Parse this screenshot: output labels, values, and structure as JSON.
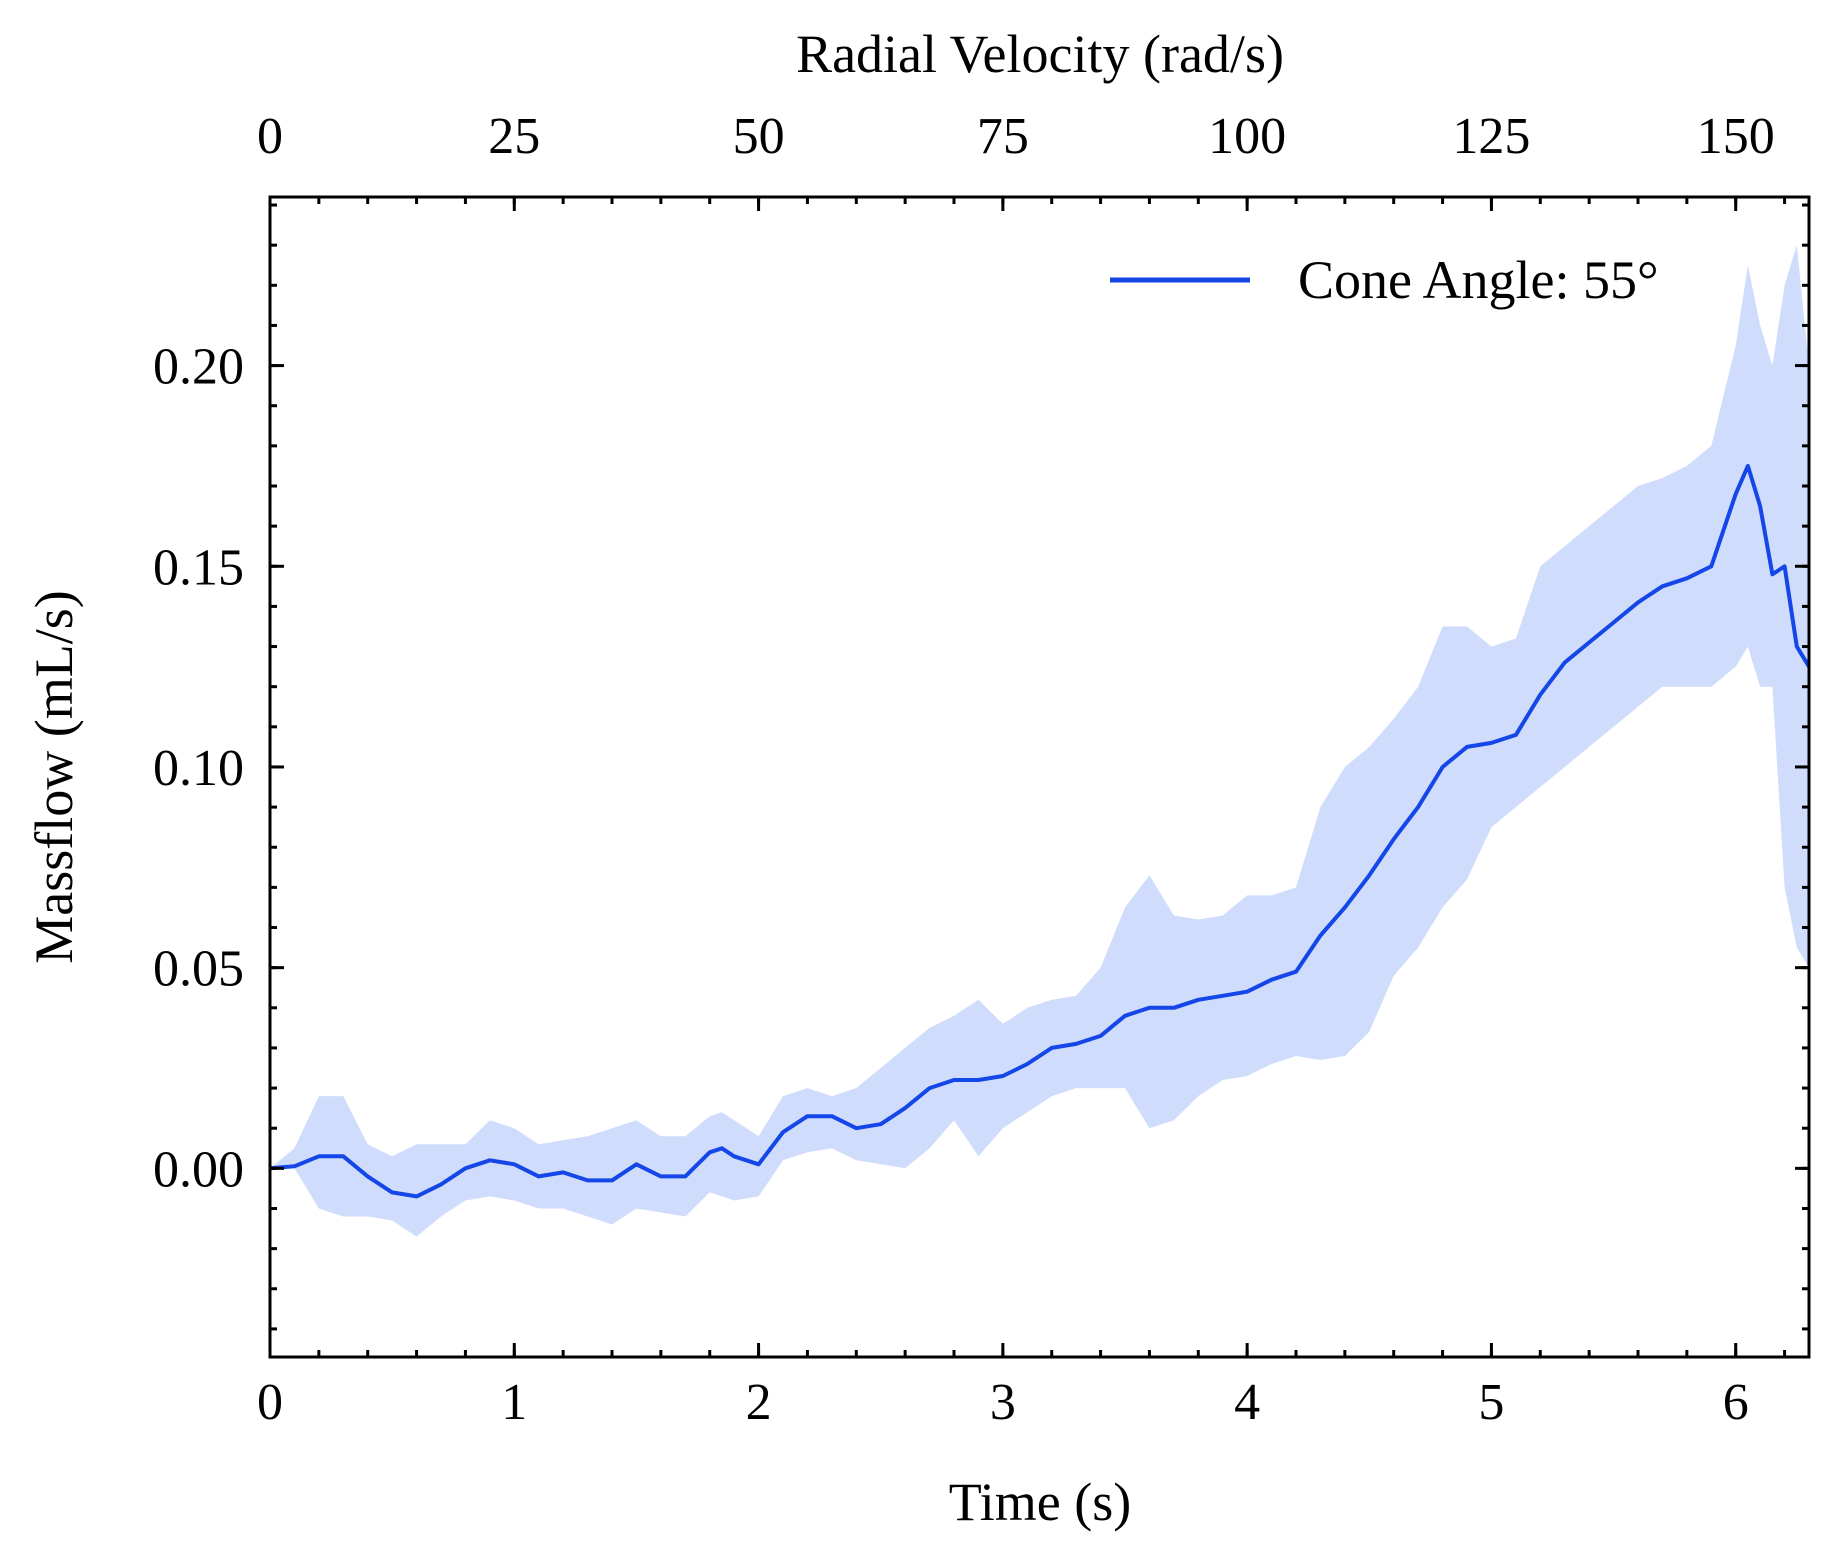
{
  "chart_data": {
    "type": "line",
    "xlabel": "Time (s)",
    "ylabel": "Massflow (mL/s)",
    "top_xlabel": "Radial Velocity (rad/s)",
    "xlim": [
      0,
      6.3
    ],
    "ylim": [
      -0.047,
      0.242
    ],
    "top_xlim": [
      0,
      157.5
    ],
    "x_ticks": [
      0,
      1,
      2,
      3,
      4,
      5,
      6
    ],
    "x_tick_labels": [
      "0",
      "1",
      "2",
      "3",
      "4",
      "5",
      "6"
    ],
    "x_minor_step": 0.2,
    "y_ticks": [
      0.0,
      0.05,
      0.1,
      0.15,
      0.2
    ],
    "y_tick_labels": [
      "0.00",
      "0.05",
      "0.10",
      "0.15",
      "0.20"
    ],
    "y_minor_step": 0.01,
    "top_ticks": [
      0,
      25,
      50,
      75,
      100,
      125,
      150
    ],
    "top_tick_labels": [
      "0",
      "25",
      "50",
      "75",
      "100",
      "125",
      "150"
    ],
    "top_minor_step": 5,
    "grid": false,
    "legend": {
      "position": "top-right"
    },
    "colors": {
      "line": "#1446e8",
      "band": "#cfdcfc"
    },
    "series": [
      {
        "name": "Cone Angle: 55°",
        "x": [
          0,
          0.1,
          0.2,
          0.3,
          0.4,
          0.5,
          0.6,
          0.7,
          0.8,
          0.9,
          1.0,
          1.1,
          1.2,
          1.3,
          1.4,
          1.5,
          1.6,
          1.7,
          1.8,
          1.85,
          1.9,
          2.0,
          2.1,
          2.2,
          2.3,
          2.4,
          2.5,
          2.6,
          2.7,
          2.8,
          2.9,
          3.0,
          3.1,
          3.2,
          3.3,
          3.4,
          3.5,
          3.6,
          3.7,
          3.8,
          3.9,
          4.0,
          4.1,
          4.2,
          4.3,
          4.4,
          4.5,
          4.6,
          4.7,
          4.8,
          4.9,
          5.0,
          5.1,
          5.2,
          5.3,
          5.4,
          5.5,
          5.6,
          5.7,
          5.8,
          5.9,
          6.0,
          6.05,
          6.1,
          6.15,
          6.2,
          6.25,
          6.3
        ],
        "y": [
          0.0,
          0.0005,
          0.003,
          0.003,
          -0.002,
          -0.006,
          -0.007,
          -0.004,
          0.0,
          0.002,
          0.001,
          -0.002,
          -0.001,
          -0.003,
          -0.003,
          0.001,
          -0.002,
          -0.002,
          0.004,
          0.005,
          0.003,
          0.001,
          0.009,
          0.013,
          0.013,
          0.01,
          0.011,
          0.015,
          0.02,
          0.022,
          0.022,
          0.023,
          0.026,
          0.03,
          0.031,
          0.033,
          0.038,
          0.04,
          0.04,
          0.042,
          0.043,
          0.044,
          0.047,
          0.049,
          0.058,
          0.065,
          0.073,
          0.082,
          0.09,
          0.1,
          0.105,
          0.106,
          0.108,
          0.118,
          0.126,
          0.131,
          0.136,
          0.141,
          0.145,
          0.147,
          0.15,
          0.168,
          0.175,
          0.165,
          0.148,
          0.15,
          0.13,
          0.125
        ],
        "y_upper": [
          0.0,
          0.005,
          0.018,
          0.018,
          0.006,
          0.003,
          0.006,
          0.006,
          0.006,
          0.012,
          0.01,
          0.006,
          0.007,
          0.008,
          0.01,
          0.012,
          0.008,
          0.008,
          0.013,
          0.014,
          0.012,
          0.008,
          0.018,
          0.02,
          0.018,
          0.02,
          0.025,
          0.03,
          0.035,
          0.038,
          0.042,
          0.036,
          0.04,
          0.042,
          0.043,
          0.05,
          0.065,
          0.073,
          0.063,
          0.062,
          0.063,
          0.068,
          0.068,
          0.07,
          0.09,
          0.1,
          0.105,
          0.112,
          0.12,
          0.135,
          0.135,
          0.13,
          0.132,
          0.15,
          0.155,
          0.16,
          0.165,
          0.17,
          0.172,
          0.175,
          0.18,
          0.205,
          0.225,
          0.21,
          0.2,
          0.22,
          0.23,
          0.2
        ]
      }
    ],
    "band_lower": [
      0.0,
      0.0,
      -0.01,
      -0.012,
      -0.012,
      -0.013,
      -0.017,
      -0.012,
      -0.008,
      -0.007,
      -0.008,
      -0.01,
      -0.01,
      -0.012,
      -0.014,
      -0.01,
      -0.011,
      -0.012,
      -0.006,
      -0.007,
      -0.008,
      -0.007,
      0.002,
      0.004,
      0.005,
      0.002,
      0.001,
      0.0,
      0.005,
      0.012,
      0.003,
      0.01,
      0.014,
      0.018,
      0.02,
      0.02,
      0.02,
      0.01,
      0.012,
      0.018,
      0.022,
      0.023,
      0.026,
      0.028,
      0.027,
      0.028,
      0.034,
      0.048,
      0.055,
      0.065,
      0.072,
      0.085,
      0.09,
      0.095,
      0.1,
      0.105,
      0.11,
      0.115,
      0.12,
      0.12,
      0.12,
      0.125,
      0.13,
      0.12,
      0.12,
      0.07,
      0.055,
      0.05
    ]
  }
}
